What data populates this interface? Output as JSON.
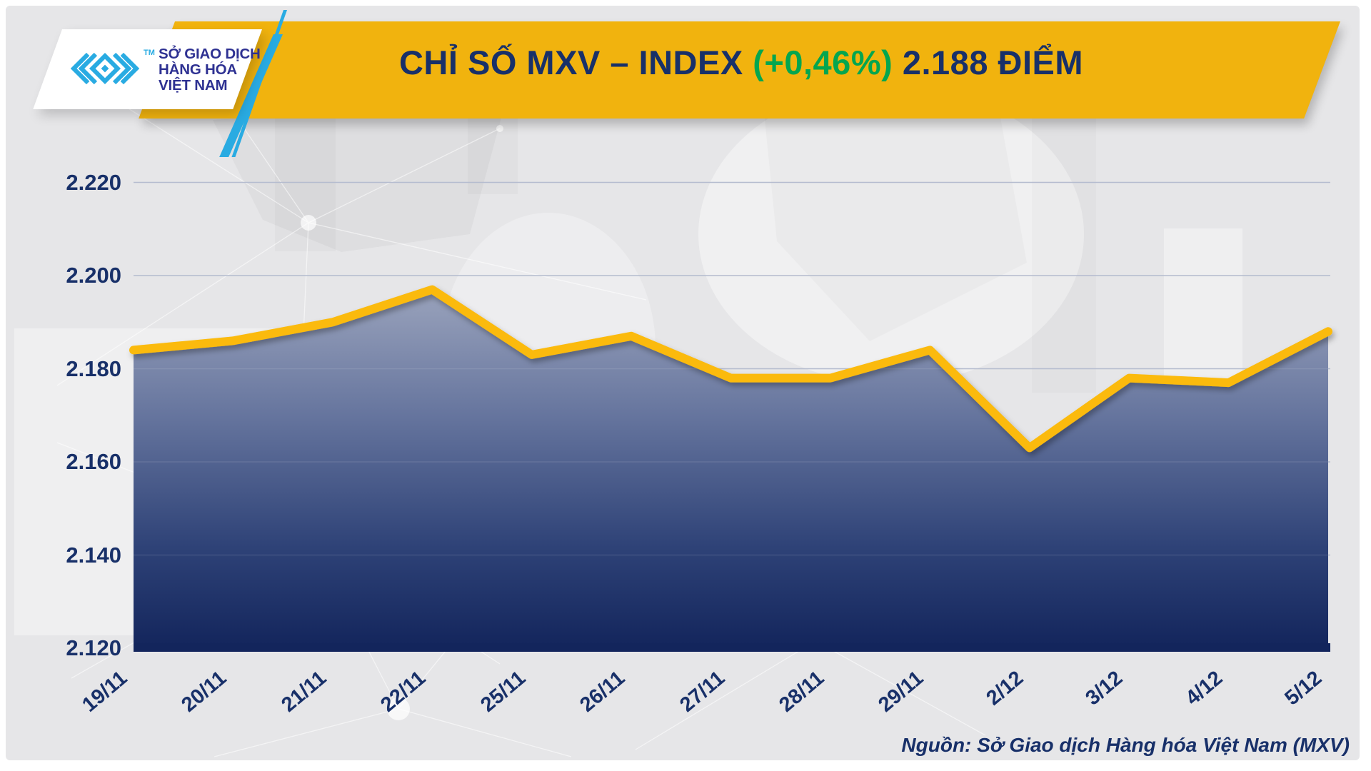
{
  "header": {
    "logo_text_lines": [
      "SỞ GIAO DỊCH",
      "HÀNG HÓA",
      "VIỆT NAM"
    ],
    "trademark": "TM",
    "title_prefix": "CHỈ SỐ MXV – INDEX ",
    "title_change": "(+0,46%)",
    "title_value": " 2.188 ĐIỂM"
  },
  "footer": {
    "source_label": "Nguồn: Sở Giao dịch Hàng hóa Việt Nam (MXV)"
  },
  "colors": {
    "banner": "#F1B30E",
    "navy": "#183069",
    "green": "#04A64F",
    "cyan": "#29ABE2",
    "logo_text": "#2E3192",
    "line": "#FBBA08",
    "grid": "#ADB5CA",
    "axis_bar": "#13255C"
  },
  "chart_data": {
    "type": "area",
    "title": "CHỈ SỐ MXV – INDEX (+0,46%) 2.188 ĐIỂM",
    "change_percent": "+0,46%",
    "last_value_label": "2.188 ĐIỂM",
    "x_labels": [
      "19/11",
      "20/11",
      "21/11",
      "22/11",
      "25/11",
      "26/11",
      "27/11",
      "28/11",
      "29/11",
      "2/12",
      "3/12",
      "4/12",
      "5/12"
    ],
    "series": [
      {
        "name": "MXV-Index",
        "values": [
          2.184,
          2.186,
          2.19,
          2.197,
          2.183,
          2.187,
          2.178,
          2.178,
          2.184,
          2.163,
          2.178,
          2.177,
          2.188
        ]
      }
    ],
    "ylim": [
      2.12,
      2.22
    ],
    "y_ticks": [
      "2.220",
      "2.200",
      "2.180",
      "2.160",
      "2.140",
      "2.120"
    ],
    "y_tick_values": [
      2.22,
      2.2,
      2.18,
      2.16,
      2.14,
      2.12
    ],
    "grid": true,
    "legend": "none",
    "area_gradient": [
      "#9AA3BC",
      "#66759E",
      "#2E4277",
      "#13255C"
    ]
  }
}
